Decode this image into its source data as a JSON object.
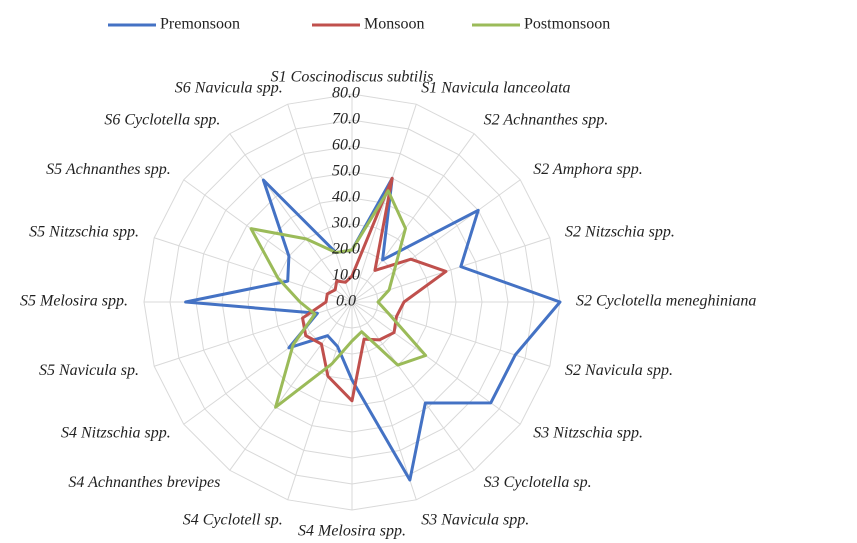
{
  "chart_data": {
    "type": "radar",
    "categories": [
      "S1 Coscinodiscus subtilis",
      "S1 Navicula lanceolata",
      "S2 Achnanthes spp.",
      "S2 Amphora spp.",
      "S2 Nitzschia spp.",
      "S2 Cyclotella meneghiniana",
      "S2 Navicula spp.",
      "S3 Nitzschia spp.",
      "S3 Cyclotella sp.",
      "S3 Navicula spp.",
      "S4 Melosira spp.",
      "S4 Cyclotell sp.",
      "S4 Achnanthes brevipes",
      "S4 Nitzschia spp.",
      "S5 Navicula sp.",
      "S5 Melosira spp.",
      "S5 Nitzschia spp.",
      "S5 Achnanthes spp.",
      "S6 Cyclotella spp.",
      "S6 Navicula spp."
    ],
    "series": [
      {
        "name": "Premonsoon",
        "color": "#4472c4",
        "values": [
          20,
          50,
          20,
          60,
          44,
          80,
          66,
          66,
          48,
          72,
          30,
          18,
          16,
          30,
          14,
          64,
          26,
          30,
          58,
          20
        ]
      },
      {
        "name": "Monsoon",
        "color": "#c0504d",
        "values": [
          10,
          50,
          15,
          28,
          38,
          20,
          18,
          20,
          18,
          15,
          38,
          30,
          20,
          22,
          20,
          10,
          10,
          8,
          10,
          8
        ]
      },
      {
        "name": "Postmonsoon",
        "color": "#9bbb59",
        "values": [
          20,
          45,
          35,
          20,
          15,
          10,
          15,
          35,
          30,
          12,
          15,
          25,
          50,
          28,
          15,
          20,
          30,
          48,
          30,
          20
        ]
      }
    ],
    "ylim": [
      0,
      80
    ],
    "yticks": [
      {
        "value": 0,
        "label": "0.0"
      },
      {
        "value": 10,
        "label": "10.0"
      },
      {
        "value": 20,
        "label": "20.0"
      },
      {
        "value": 30,
        "label": "30.0"
      },
      {
        "value": 40,
        "label": "40.0"
      },
      {
        "value": 50,
        "label": "50.0"
      },
      {
        "value": 60,
        "label": "60.0"
      },
      {
        "value": 70,
        "label": "70.0"
      },
      {
        "value": 80,
        "label": "80.0"
      }
    ],
    "grid": true
  }
}
